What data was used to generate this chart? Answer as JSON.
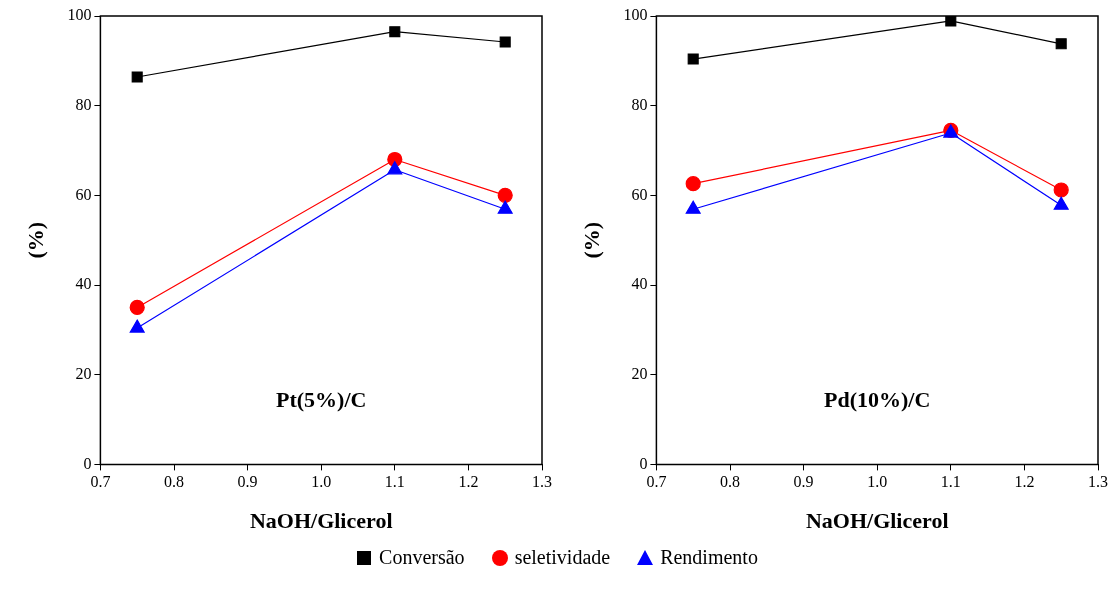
{
  "chart_data": [
    {
      "type": "line",
      "xlabel": "NaOH/Glicerol",
      "ylabel": "(%)",
      "annotations": [
        "Pt(5%)/C"
      ],
      "x": [
        0.75,
        1.1,
        1.25
      ],
      "xlim": [
        0.7,
        1.3
      ],
      "xticks": [
        {
          "value": 0.7,
          "label": "0.7"
        },
        {
          "value": 0.8,
          "label": "0.8"
        },
        {
          "value": 0.9,
          "label": "0.9"
        },
        {
          "value": 1.0,
          "label": "1.0"
        },
        {
          "value": 1.1,
          "label": "1.1"
        },
        {
          "value": 1.2,
          "label": "1.2"
        },
        {
          "value": 1.3,
          "label": "1.3"
        }
      ],
      "ylim": [
        0,
        100
      ],
      "yticks": [
        0,
        20,
        40,
        60,
        80,
        100
      ],
      "grid": false,
      "legend": "bottom",
      "series": [
        {
          "name": "Conversão",
          "color": "#000000",
          "marker": "square",
          "values": [
            86.4,
            96.5,
            94.2
          ]
        },
        {
          "name": "seletividade",
          "color": "#ff0000",
          "marker": "circle",
          "values": [
            35,
            68,
            60
          ]
        },
        {
          "name": "Rendimento",
          "color": "#0000ff",
          "marker": "triangle",
          "values": [
            30.4,
            65.7,
            56.9
          ]
        }
      ]
    },
    {
      "type": "line",
      "xlabel": "NaOH/Glicerol",
      "ylabel": "(%)",
      "annotations": [
        "Pd(10%)/C"
      ],
      "x": [
        0.75,
        1.1,
        1.25
      ],
      "xlim": [
        0.7,
        1.3
      ],
      "xticks": [
        {
          "value": 0.7,
          "label": "0.7"
        },
        {
          "value": 0.8,
          "label": "0.8"
        },
        {
          "value": 0.9,
          "label": "0.9"
        },
        {
          "value": 1.0,
          "label": "1.0"
        },
        {
          "value": 1.1,
          "label": "1.1"
        },
        {
          "value": 1.2,
          "label": "1.2"
        },
        {
          "value": 1.3,
          "label": "1.3"
        }
      ],
      "ylim": [
        0,
        100
      ],
      "yticks": [
        0,
        20,
        40,
        60,
        80,
        100
      ],
      "grid": false,
      "series": [
        {
          "color": "#000000",
          "marker": "square",
          "values": [
            90.4,
            98.9,
            93.8
          ]
        },
        {
          "color": "#ff0000",
          "marker": "circle",
          "values": [
            62.6,
            74.5,
            61.2
          ]
        },
        {
          "color": "#0000ff",
          "marker": "triangle",
          "values": [
            56.9,
            73.9,
            57.8
          ]
        }
      ]
    }
  ]
}
